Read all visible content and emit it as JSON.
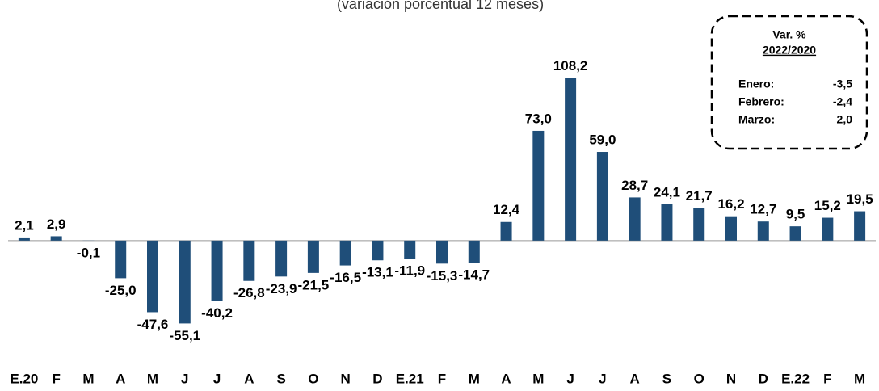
{
  "chart_data": {
    "type": "bar",
    "subtitle": "(variación porcentual 12 meses)",
    "categories": [
      "E.20",
      "F",
      "M",
      "A",
      "M",
      "J",
      "J",
      "A",
      "S",
      "O",
      "N",
      "D",
      "E.21",
      "F",
      "M",
      "A",
      "M",
      "J",
      "J",
      "A",
      "S",
      "O",
      "N",
      "D",
      "E.22",
      "F",
      "M"
    ],
    "values": [
      2.1,
      2.9,
      -0.1,
      -25.0,
      -47.6,
      -55.1,
      -40.2,
      -26.8,
      -23.9,
      -21.5,
      -16.5,
      -13.1,
      -11.9,
      -15.3,
      -14.7,
      12.4,
      73.0,
      108.2,
      59.0,
      28.7,
      24.1,
      21.7,
      16.2,
      12.7,
      9.5,
      15.2,
      19.5
    ],
    "value_labels": [
      "2,1",
      "2,9",
      "-0,1",
      "-25,0",
      "-47,6",
      "-55,1",
      "-40,2",
      "-26,8",
      "-23,9",
      "-21,5",
      "-16,5",
      "-13,1",
      "-11,9",
      "-15,3",
      "-14,7",
      "12,4",
      "73,0",
      "108,2",
      "59,0",
      "28,7",
      "24,1",
      "21,7",
      "16,2",
      "12,7",
      "9,5",
      "15,2",
      "19,5"
    ],
    "color": "#1f4e79",
    "ylim": [
      -100,
      160
    ],
    "grid": false,
    "inset": {
      "title": "Var. %",
      "subtitle": "2022/2020",
      "rows": [
        {
          "label": "Enero:",
          "value": "-3,5"
        },
        {
          "label": "Febrero:",
          "value": "-2,4"
        },
        {
          "label": "Marzo:",
          "value": "2,0"
        }
      ]
    }
  }
}
